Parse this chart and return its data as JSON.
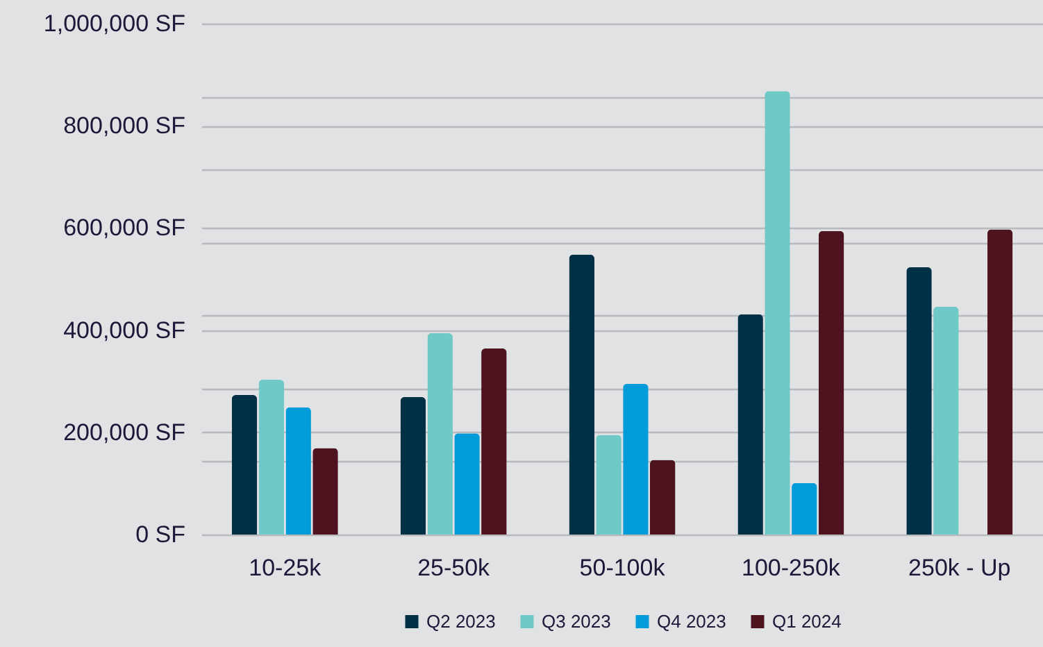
{
  "chart_data": {
    "type": "bar",
    "categories": [
      "10-25k",
      "25-50k",
      "50-100k",
      "100-250k",
      "250k - Up"
    ],
    "series": [
      {
        "name": "Q2 2023",
        "color": "#003046",
        "values": [
          273000,
          269000,
          548000,
          431000,
          523000
        ]
      },
      {
        "name": "Q3 2023",
        "color": "#6fc9c6",
        "values": [
          303000,
          394000,
          195000,
          868000,
          446000
        ]
      },
      {
        "name": "Q4 2023",
        "color": "#009bd8",
        "values": [
          249000,
          198000,
          295000,
          101000,
          null
        ]
      },
      {
        "name": "Q1 2024",
        "color": "#4d131f",
        "values": [
          169000,
          364000,
          146000,
          594000,
          597000
        ]
      }
    ],
    "ylim": [
      0,
      1000000
    ],
    "yticks": [
      {
        "value": 0,
        "label": "0 SF"
      },
      {
        "value": 142857,
        "label": null
      },
      {
        "value": 200000,
        "label": "200,000 SF"
      },
      {
        "value": 285714,
        "label": null
      },
      {
        "value": 400000,
        "label": "400,000 SF"
      },
      {
        "value": 428571,
        "label": null
      },
      {
        "value": 571429,
        "label": null
      },
      {
        "value": 600000,
        "label": "600,000 SF"
      },
      {
        "value": 714286,
        "label": null
      },
      {
        "value": 800000,
        "label": "800,000 SF"
      },
      {
        "value": 857143,
        "label": null
      },
      {
        "value": 1000000,
        "label": "1,000,000 SF"
      }
    ],
    "grid": true,
    "legend": "bottom"
  }
}
